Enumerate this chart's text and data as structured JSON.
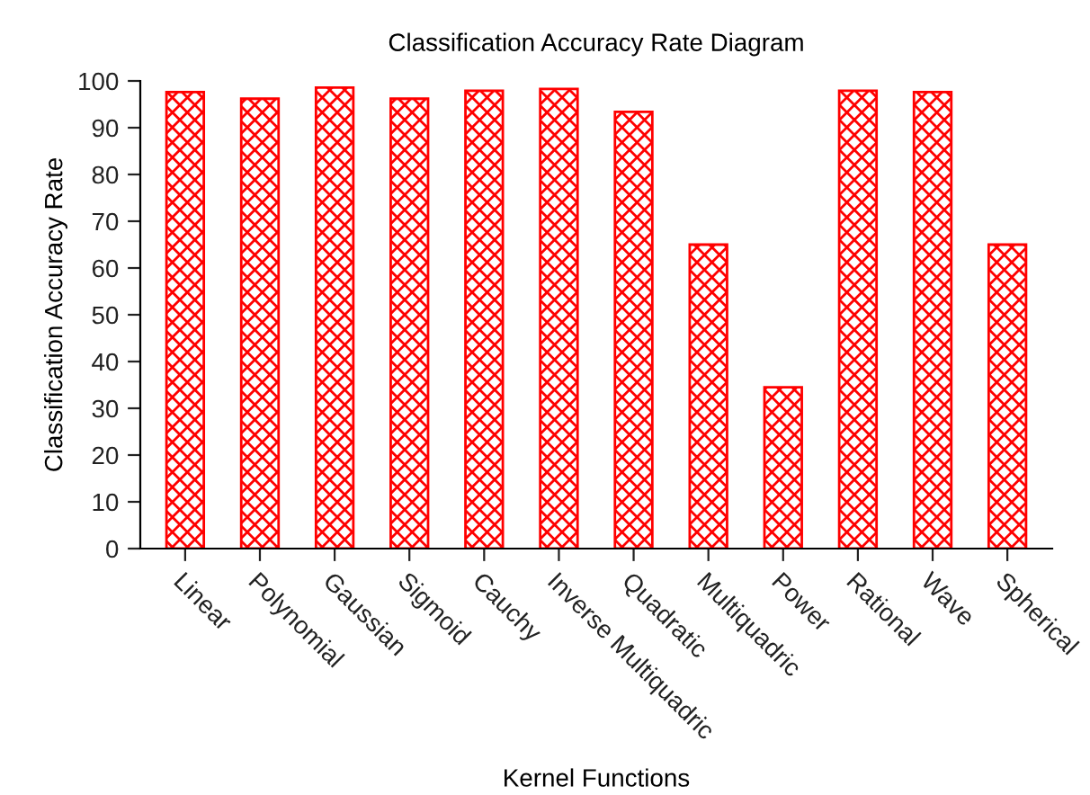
{
  "chart_data": {
    "type": "bar",
    "title": "Classification Accuracy Rate Diagram",
    "xlabel": "Kernel Functions",
    "ylabel": "Classification Accuracy Rate",
    "categories": [
      "Linear",
      "Polynomial",
      "Gaussian",
      "Sigmoid",
      "Cauchy",
      "Inverse Multiquadric",
      "Quadratic",
      "Multiquadric",
      "Power",
      "Rational",
      "Wave",
      "Spherical"
    ],
    "values": [
      97.6,
      96.2,
      98.6,
      96.2,
      97.9,
      98.3,
      93.4,
      65,
      34.5,
      97.9,
      97.6,
      65
    ],
    "color": "#ff0000",
    "ylim": [
      0,
      100
    ],
    "yticks": [
      0,
      10,
      20,
      30,
      40,
      50,
      60,
      70,
      80,
      90,
      100
    ],
    "grid": false,
    "legend": false
  }
}
